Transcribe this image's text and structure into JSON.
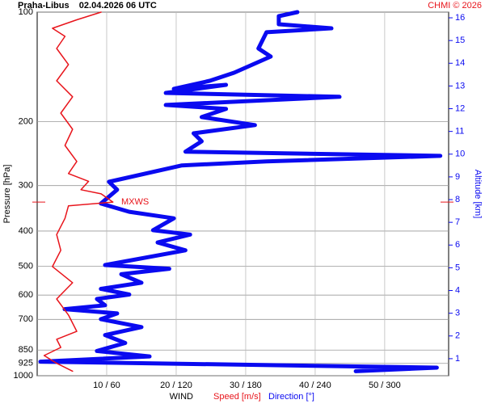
{
  "chart_data": {
    "type": "profile",
    "title": "Praha-Libus    02.04.2026 06 UTC",
    "copyright": "CHMI © 2026",
    "ylabel": "Pressure [hPa]",
    "y2label": "Altitude [km]",
    "xlabel": "WIND",
    "log_y": true,
    "grid": true,
    "xlim": [
      0,
      59.2
    ],
    "x2lim": [
      0,
      355.2
    ],
    "ylim": [
      100,
      1000
    ],
    "y2lim": [
      0.25,
      16.25
    ],
    "xticks": [
      {
        "value": 10,
        "label": "10 / 60"
      },
      {
        "value": 20,
        "label": "20 / 120"
      },
      {
        "value": 30,
        "label": "30 / 180"
      },
      {
        "value": 40,
        "label": "40 / 240"
      },
      {
        "value": 50,
        "label": "50 / 300"
      }
    ],
    "yticks": [
      100,
      200,
      300,
      400,
      500,
      600,
      700,
      850,
      925,
      1000
    ],
    "y2ticks": [
      1,
      2,
      3,
      4,
      5,
      6,
      7,
      8,
      9,
      10,
      11,
      12,
      13,
      14,
      15,
      16
    ],
    "mxws": {
      "label": "MXWS",
      "pressure": 333
    },
    "series": [
      {
        "name": "Speed [m/s]",
        "color": "#e8141b",
        "axis": "x",
        "x": [
          9.2,
          5.7,
          2.2,
          4.0,
          2.8,
          4.5,
          2.8,
          5.1,
          3.4,
          5.1,
          4.0,
          5.7,
          4.5,
          7.4,
          6.3,
          9.2,
          10.9,
          4.5,
          4.0,
          2.8,
          3.4,
          2.2,
          5.1,
          2.8,
          4.5,
          5.7,
          2.8,
          3.4,
          1.0,
          2.8,
          5.1
        ],
        "y": [
          100,
          105,
          110.8,
          116.6,
          125.9,
          139.4,
          154.5,
          171,
          189.6,
          210,
          232.6,
          257.5,
          278,
          292,
          308,
          316,
          333,
          341,
          369,
          409,
          452,
          501,
          555,
          615,
          681,
          755,
          794,
          836,
          880,
          924,
          972
        ]
      },
      {
        "name": "Direction [°]",
        "color": "#0a0af0",
        "axis": "x2",
        "x": [
          224.6,
          208.6,
          208.6,
          254,
          198,
          191,
          201.6,
          170,
          149,
          118,
          163,
          111,
          261,
          111,
          163,
          142,
          188,
          135,
          142,
          128,
          348,
          198,
          125,
          62,
          69,
          55,
          79.5,
          118,
          100,
          132,
          104,
          128,
          58.6,
          114,
          72.6,
          90,
          55,
          79.5,
          51.6,
          58.6,
          23.7,
          69,
          55,
          90,
          58.6,
          76,
          51.6,
          97,
          2.8,
          345,
          275
        ],
        "y": [
          100,
          102.6,
          108,
          110.8,
          113.6,
          125.9,
          132.5,
          146.8,
          154.5,
          162.5,
          158.5,
          166.8,
          171,
          180,
          184.6,
          194.4,
          204.5,
          215.4,
          226.6,
          242,
          248.5,
          257.5,
          264,
          292.9,
          308,
          336,
          354,
          369,
          398,
          409,
          430,
          452,
          496,
          508,
          526,
          555,
          577,
          598,
          615,
          640,
          656,
          674,
          699,
          735,
          773,
          813,
          855,
          885,
          915,
          950,
          972
        ]
      }
    ]
  }
}
